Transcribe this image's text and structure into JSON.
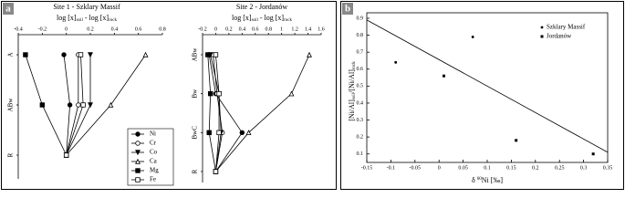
{
  "panel_labels": [
    "a",
    "b"
  ],
  "chart_data": [
    {
      "type": "profile",
      "title": "Site 1 - Szklary Massif",
      "xlabel": [
        "log [x]",
        "soil",
        " - log [x]",
        "rock"
      ],
      "xlim": [
        -0.4,
        0.8
      ],
      "xticks": [
        -0.4,
        -0.2,
        0,
        0.2,
        0.4,
        0.6,
        0.8
      ],
      "categories": [
        "A",
        "ABw",
        "R"
      ],
      "legend": "lower right",
      "series": [
        {
          "name": "Ni",
          "color": "#000",
          "marker": "circle",
          "values": [
            -0.02,
            0.03,
            0
          ]
        },
        {
          "name": "Cr",
          "color": "#000",
          "marker": "circle-open",
          "values": [
            0.1,
            0.1,
            0
          ]
        },
        {
          "name": "Co",
          "color": "#000",
          "marker": "triangle-down",
          "values": [
            0.2,
            0.2,
            0
          ]
        },
        {
          "name": "Ca",
          "color": "#000",
          "marker": "triangle-open",
          "values": [
            0.66,
            0.37,
            0
          ]
        },
        {
          "name": "Mg",
          "color": "#000",
          "marker": "square",
          "values": [
            -0.34,
            -0.2,
            0
          ]
        },
        {
          "name": "Fe",
          "color": "#000",
          "marker": "square-open",
          "values": [
            0.12,
            0.14,
            0
          ]
        }
      ]
    },
    {
      "type": "profile",
      "title": "Site 2 - Jordanów",
      "xlabel": [
        "log [x]",
        "soil",
        " - log [x]",
        "rock"
      ],
      "xlim": [
        -0.2,
        1.6
      ],
      "xticks": [
        -0.2,
        0,
        0.2,
        0.4,
        0.6,
        0.8,
        1,
        1.2,
        1.4,
        1.6
      ],
      "categories": [
        "ABw",
        "Bw",
        "BwC",
        "R"
      ],
      "series": [
        {
          "name": "Ni",
          "color": "#000",
          "marker": "circle",
          "values": [
            -0.1,
            0,
            0.4,
            0
          ]
        },
        {
          "name": "Cr",
          "color": "#000",
          "marker": "circle-open",
          "values": [
            -0.04,
            0.02,
            0.1,
            0
          ]
        },
        {
          "name": "Co",
          "color": "#000",
          "marker": "triangle-down",
          "values": [
            -0.08,
            0.05,
            0.08,
            0
          ]
        },
        {
          "name": "Ca",
          "color": "#000",
          "marker": "triangle-open",
          "values": [
            1.42,
            1.15,
            0.5,
            0
          ]
        },
        {
          "name": "Mg",
          "color": "#000",
          "marker": "square",
          "values": [
            -0.12,
            -0.08,
            -0.1,
            0
          ]
        },
        {
          "name": "Fe",
          "color": "#000",
          "marker": "square-open",
          "values": [
            0,
            0.05,
            0.05,
            0
          ]
        }
      ]
    },
    {
      "type": "scatter",
      "xlabel": [
        "δ ",
        "60",
        "Ni [‰]"
      ],
      "ylabel": [
        "[Ni/Al]",
        "soil",
        "/[Ni/Al]",
        "rock"
      ],
      "xlim": [
        -0.15,
        0.35
      ],
      "xticks": [
        -0.15,
        -0.1,
        -0.05,
        0,
        0.05,
        0.1,
        0.15,
        0.2,
        0.25,
        0.3,
        0.35
      ],
      "ylim": [
        0.05,
        0.9
      ],
      "yticks": [
        0.1,
        0.2,
        0.3,
        0.4,
        0.5,
        0.6,
        0.7,
        0.8,
        0.9
      ],
      "legend": "upper right",
      "series": [
        {
          "name": "Szklary Massif",
          "color": "#000",
          "marker": "circle",
          "x": [
            -0.09,
            0.07
          ],
          "values": [
            0.64,
            0.79
          ]
        },
        {
          "name": "Jordanów",
          "color": "#000",
          "marker": "square",
          "x": [
            0.01,
            0.16,
            0.32
          ],
          "values": [
            0.56,
            0.18,
            0.1
          ]
        }
      ],
      "trend_line": {
        "x": [
          -0.15,
          0.35
        ],
        "values": [
          0.89,
          0.11
        ]
      }
    }
  ]
}
